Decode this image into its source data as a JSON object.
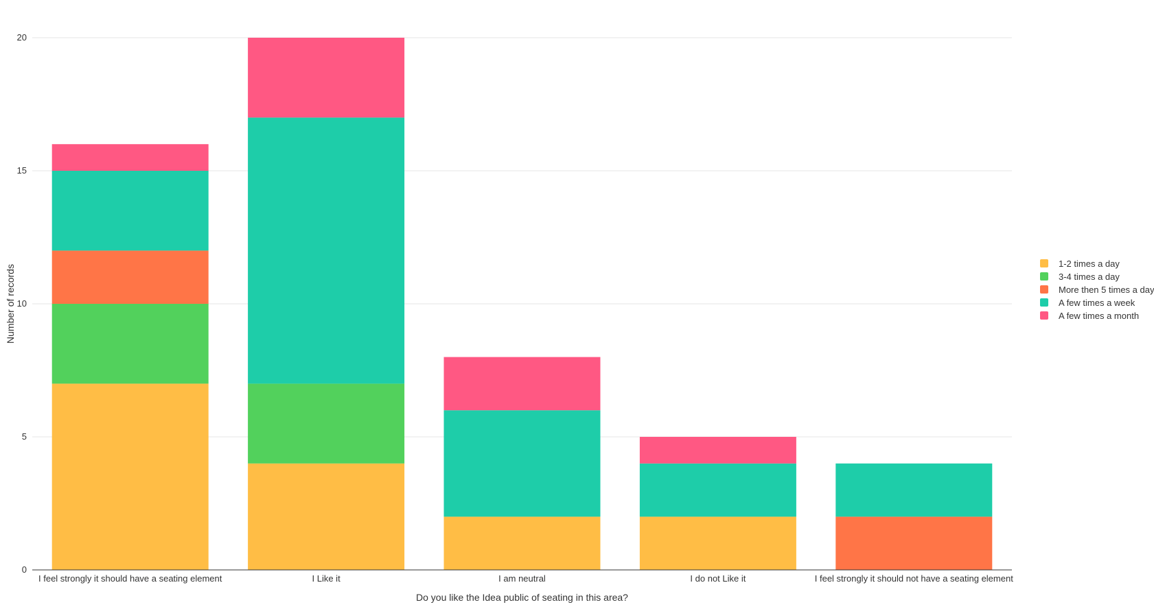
{
  "chart_data": {
    "type": "bar",
    "stacked": true,
    "title": "",
    "xlabel": "Do you like the Idea public of seating in this area?",
    "ylabel": "Number of records",
    "ylim": [
      0,
      20
    ],
    "yticks": [
      0,
      5,
      10,
      15,
      20
    ],
    "grid": true,
    "legend_position": "right",
    "categories": [
      "I feel strongly it should have a seating element",
      "I Like it",
      "I am neutral",
      "I do not Like it",
      "I feel strongly it should not have a seating element"
    ],
    "series": [
      {
        "name": "1-2 times a day",
        "color": "#FFBD45",
        "values": [
          7,
          4,
          2,
          2,
          0
        ]
      },
      {
        "name": "3-4 times a day",
        "color": "#52D15C",
        "values": [
          3,
          3,
          0,
          0,
          0
        ]
      },
      {
        "name": "More then 5 times a day",
        "color": "#FF7547",
        "values": [
          2,
          0,
          0,
          0,
          2
        ]
      },
      {
        "name": "A few times a week",
        "color": "#1ECDA9",
        "values": [
          3,
          10,
          4,
          2,
          2
        ]
      },
      {
        "name": "A few times a month",
        "color": "#FF5883",
        "values": [
          1,
          3,
          2,
          1,
          0
        ]
      }
    ]
  }
}
